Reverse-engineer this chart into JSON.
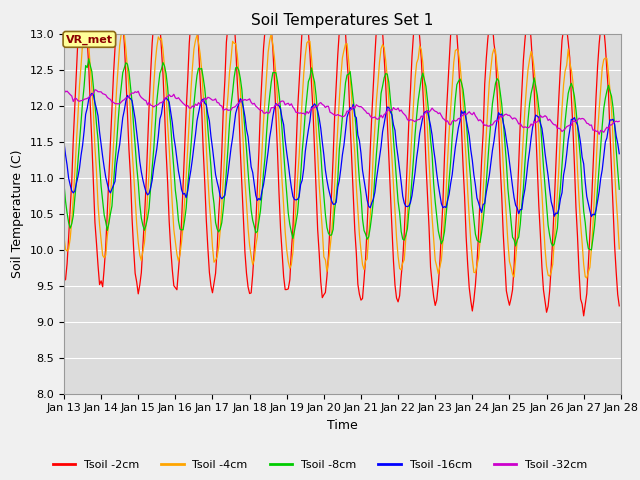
{
  "title": "Soil Temperatures Set 1",
  "xlabel": "Time",
  "ylabel": "Soil Temperature (C)",
  "ylim": [
    8.0,
    13.0
  ],
  "yticks": [
    8.0,
    8.5,
    9.0,
    9.5,
    10.0,
    10.5,
    11.0,
    11.5,
    12.0,
    12.5,
    13.0
  ],
  "x_tick_labels": [
    "Jan 13",
    "Jan 14",
    "Jan 15",
    "Jan 16",
    "Jan 17",
    "Jan 18",
    "Jan 19",
    "Jan 20",
    "Jan 21",
    "Jan 22",
    "Jan 23",
    "Jan 24",
    "Jan 25",
    "Jan 26",
    "Jan 27",
    "Jan 28"
  ],
  "colors": {
    "2cm": "#FF0000",
    "4cm": "#FFA500",
    "8cm": "#00CC00",
    "16cm": "#0000FF",
    "32cm": "#CC00CC"
  },
  "legend_labels": [
    "Tsoil -2cm",
    "Tsoil -4cm",
    "Tsoil -8cm",
    "Tsoil -16cm",
    "Tsoil -32cm"
  ],
  "annotation_text": "VR_met",
  "fig_facecolor": "#F0F0F0",
  "ax_facecolor": "#DCDCDC",
  "title_fontsize": 11,
  "axis_fontsize": 9,
  "tick_fontsize": 8
}
